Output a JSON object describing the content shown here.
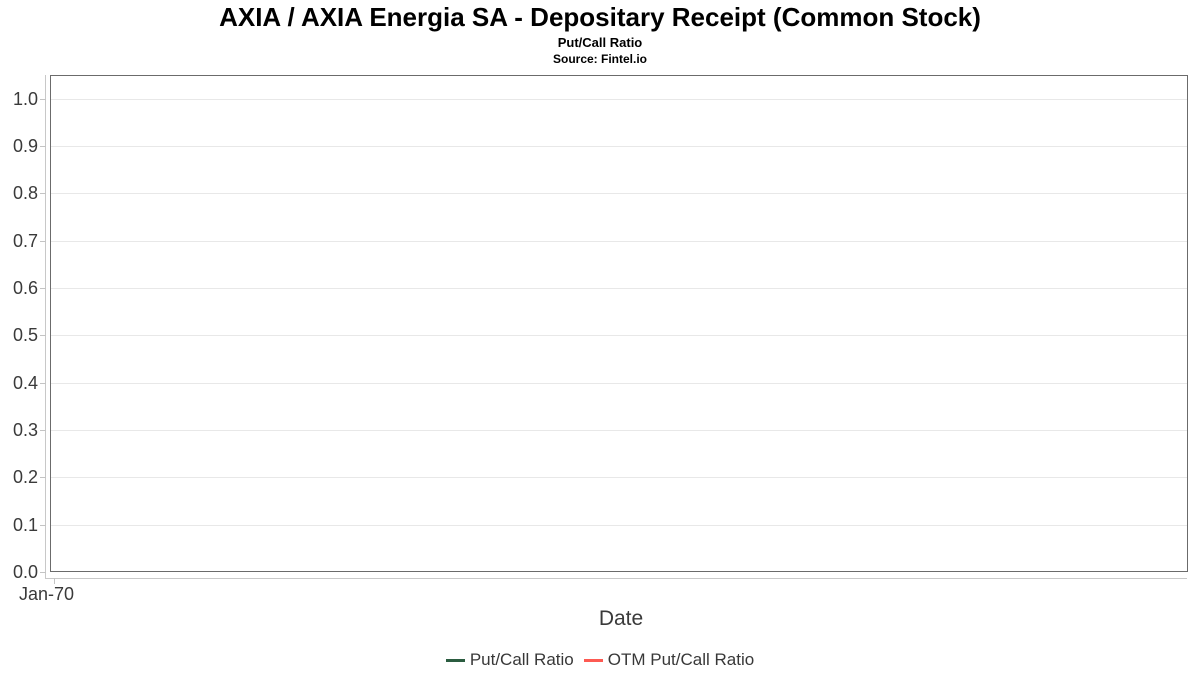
{
  "header": {
    "title": "AXIA / AXIA Energia SA - Depositary Receipt (Common Stock)",
    "subtitle": "Put/Call Ratio",
    "source": "Source: Fintel.io"
  },
  "chart_data": {
    "type": "line",
    "title": "AXIA / AXIA Energia SA - Depositary Receipt (Common Stock)",
    "subtitle": "Put/Call Ratio",
    "source": "Source: Fintel.io",
    "xlabel": "Date",
    "ylabel": "",
    "x_ticks": [
      "Jan-70"
    ],
    "y_ticks": [
      1.0,
      0.9,
      0.8,
      0.7,
      0.6,
      0.5,
      0.4,
      0.3,
      0.2,
      0.1,
      0.0
    ],
    "ylim": [
      0,
      1.05
    ],
    "grid": true,
    "legend_position": "bottom",
    "series": [
      {
        "name": "Put/Call Ratio",
        "color": "#2b5c40",
        "values": []
      },
      {
        "name": "OTM Put/Call Ratio",
        "color": "#fd5a52",
        "values": []
      }
    ]
  },
  "colors": {
    "plot_border": "#6b6b6b",
    "gridline": "#e8e8e8",
    "axis_line": "#c8c8c8",
    "tick": "#c4c4c4",
    "tick_label": "#3a3a3a"
  }
}
